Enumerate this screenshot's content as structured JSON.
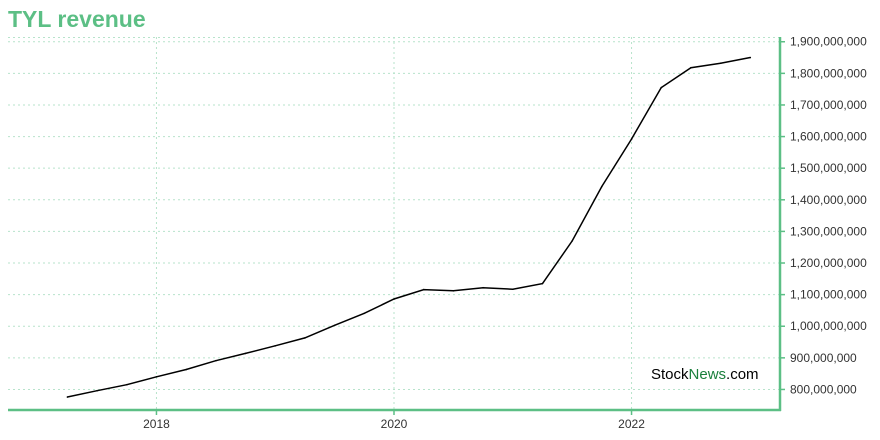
{
  "page": {
    "title": "TYL revenue"
  },
  "colors": {
    "accent": "#5cbf85",
    "grid": "#b7e3cb",
    "line": "#000000",
    "brand_green": "#1a7f3c",
    "brand_black": "#000000"
  },
  "watermark": {
    "part1": "Stock",
    "part2": "News",
    "part3": ".com"
  },
  "chart_data": {
    "type": "line",
    "title": "TYL revenue",
    "xlabel": "",
    "ylabel": "",
    "grid": true,
    "x_axis": {
      "ticks": [
        2018,
        2020,
        2022
      ],
      "range": [
        2016.75,
        2023.25
      ]
    },
    "y_axis": {
      "position": "right",
      "range": [
        735000000,
        1915000000
      ],
      "ticks": [
        800000000,
        900000000,
        1000000000,
        1100000000,
        1200000000,
        1300000000,
        1400000000,
        1500000000,
        1600000000,
        1700000000,
        1800000000,
        1900000000
      ],
      "tick_labels": [
        "800,000,000",
        "900,000,000",
        "1,000,000,000",
        "1,100,000,000",
        "1,200,000,000",
        "1,300,000,000",
        "1,400,000,000",
        "1,500,000,000",
        "1,600,000,000",
        "1,700,000,000",
        "1,800,000,000",
        "1,900,000,000"
      ]
    },
    "series": [
      {
        "x": [
          2017.25,
          2017.5,
          2017.75,
          2018.0,
          2018.25,
          2018.5,
          2018.75,
          2019.0,
          2019.25,
          2019.5,
          2019.75,
          2020.0,
          2020.25,
          2020.5,
          2020.75,
          2021.0,
          2021.25,
          2021.5,
          2021.75,
          2022.0,
          2022.25,
          2022.5,
          2022.75,
          2023.0
        ],
        "values": [
          776000000,
          796000000,
          815000000,
          840000000,
          863000000,
          891000000,
          914000000,
          938000000,
          963000000,
          1003000000,
          1041000000,
          1086000000,
          1116000000,
          1112000000,
          1122000000,
          1117000000,
          1135000000,
          1270000000,
          1442000000,
          1592000000,
          1755000000,
          1818000000,
          1832000000,
          1850000000
        ]
      }
    ]
  }
}
